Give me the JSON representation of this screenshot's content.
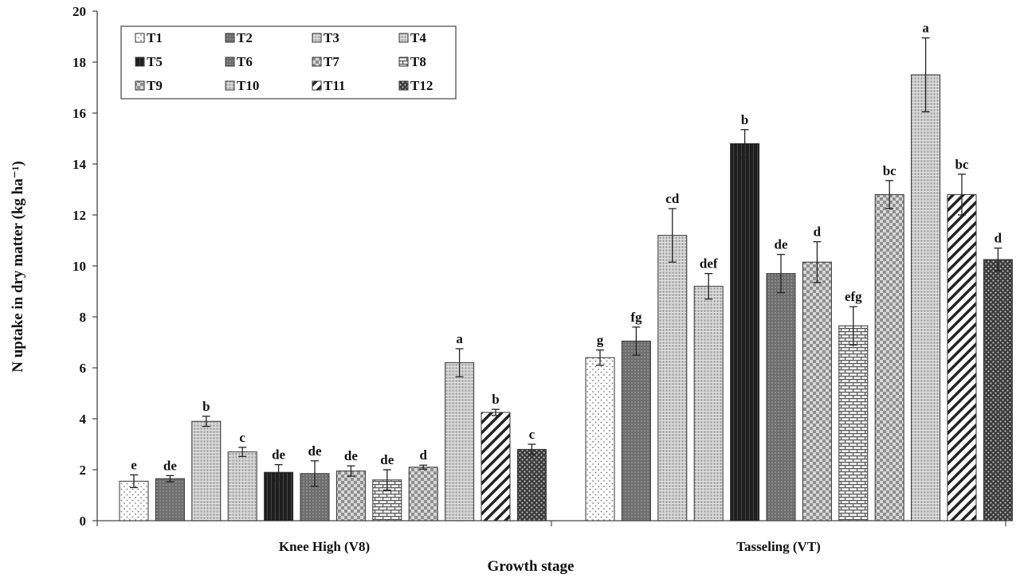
{
  "chart_data": {
    "type": "bar",
    "xlabel": "Growth stage",
    "ylabel": "N uptake in dry matter (kg ha⁻¹)",
    "ylim": [
      0,
      20
    ],
    "yticks": [
      "0",
      "2",
      "4",
      "6",
      "8",
      "10",
      "12",
      "14",
      "16",
      "18",
      "20"
    ],
    "grid": false,
    "legend_position": "top-left",
    "categories": [
      "Knee High (V8)",
      "Tasseling (VT)"
    ],
    "series": [
      {
        "name": "T1",
        "values": [
          1.55,
          6.4
        ],
        "errors": [
          0.25,
          0.3
        ],
        "letters": [
          "e",
          "g"
        ],
        "pattern": "dots",
        "color": "#ffffff"
      },
      {
        "name": "T2",
        "values": [
          1.65,
          7.05
        ],
        "errors": [
          0.12,
          0.55
        ],
        "letters": [
          "de",
          "fg"
        ],
        "pattern": "dark",
        "color": "#7a7a7a"
      },
      {
        "name": "T3",
        "values": [
          3.9,
          11.2
        ],
        "errors": [
          0.2,
          1.05
        ],
        "letters": [
          "b",
          "cd"
        ],
        "pattern": "fine",
        "color": "#c4c4c4"
      },
      {
        "name": "T4",
        "values": [
          2.7,
          9.2
        ],
        "errors": [
          0.18,
          0.5
        ],
        "letters": [
          "c",
          "def"
        ],
        "pattern": "fine",
        "color": "#d6d6d6"
      },
      {
        "name": "T5",
        "values": [
          1.9,
          14.8
        ],
        "errors": [
          0.3,
          0.55
        ],
        "letters": [
          "de",
          "b"
        ],
        "pattern": "black",
        "color": "#2a2a2a"
      },
      {
        "name": "T6",
        "values": [
          1.85,
          9.7
        ],
        "errors": [
          0.5,
          0.75
        ],
        "letters": [
          "de",
          "de"
        ],
        "pattern": "dark",
        "color": "#8a8a8a"
      },
      {
        "name": "T7",
        "values": [
          1.95,
          10.15
        ],
        "errors": [
          0.2,
          0.8
        ],
        "letters": [
          "de",
          "d"
        ],
        "pattern": "checker",
        "color": "#b0b0b0"
      },
      {
        "name": "T8",
        "values": [
          1.6,
          7.65
        ],
        "errors": [
          0.4,
          0.75
        ],
        "letters": [
          "de",
          "efg"
        ],
        "pattern": "brick",
        "color": "#e0e0e0"
      },
      {
        "name": "T9",
        "values": [
          2.1,
          12.8
        ],
        "errors": [
          0.08,
          0.55
        ],
        "letters": [
          "d",
          "bc"
        ],
        "pattern": "checker",
        "color": "#cfcfcf"
      },
      {
        "name": "T10",
        "values": [
          6.2,
          17.5
        ],
        "errors": [
          0.55,
          1.45
        ],
        "letters": [
          "a",
          "a"
        ],
        "pattern": "fine",
        "color": "#bdbdbd"
      },
      {
        "name": "T11",
        "values": [
          4.25,
          12.8
        ],
        "errors": [
          0.12,
          0.8
        ],
        "letters": [
          "b",
          "bc"
        ],
        "pattern": "diag",
        "color": "#ffffff"
      },
      {
        "name": "T12",
        "values": [
          2.8,
          10.25
        ],
        "errors": [
          0.2,
          0.45
        ],
        "letters": [
          "c",
          "d"
        ],
        "pattern": "dense",
        "color": "#5a5a5a"
      }
    ]
  }
}
